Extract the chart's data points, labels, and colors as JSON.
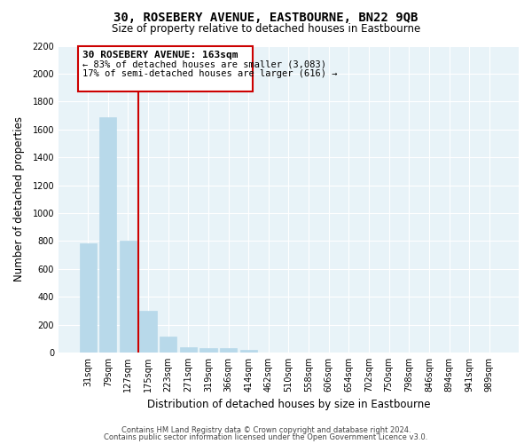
{
  "title": "30, ROSEBERY AVENUE, EASTBOURNE, BN22 9QB",
  "subtitle": "Size of property relative to detached houses in Eastbourne",
  "xlabel": "Distribution of detached houses by size in Eastbourne",
  "ylabel": "Number of detached properties",
  "categories": [
    "31sqm",
    "79sqm",
    "127sqm",
    "175sqm",
    "223sqm",
    "271sqm",
    "319sqm",
    "366sqm",
    "414sqm",
    "462sqm",
    "510sqm",
    "558sqm",
    "606sqm",
    "654sqm",
    "702sqm",
    "750sqm",
    "798sqm",
    "846sqm",
    "894sqm",
    "941sqm",
    "989sqm"
  ],
  "values": [
    780,
    1690,
    800,
    300,
    115,
    40,
    30,
    30,
    20,
    0,
    0,
    0,
    0,
    0,
    0,
    0,
    0,
    0,
    0,
    0,
    0
  ],
  "bar_color": "#b8d9ea",
  "vline_color": "#cc0000",
  "vline_pos": 2.5,
  "annotation_title": "30 ROSEBERY AVENUE: 163sqm",
  "annotation_line1": "← 83% of detached houses are smaller (3,083)",
  "annotation_line2": "17% of semi-detached houses are larger (616) →",
  "ylim": [
    0,
    2200
  ],
  "yticks": [
    0,
    200,
    400,
    600,
    800,
    1000,
    1200,
    1400,
    1600,
    1800,
    2000,
    2200
  ],
  "footer1": "Contains HM Land Registry data © Crown copyright and database right 2024.",
  "footer2": "Contains public sector information licensed under the Open Government Licence v3.0.",
  "bg_color": "#e8f3f8",
  "title_fontsize": 10,
  "subtitle_fontsize": 8.5,
  "tick_fontsize": 7,
  "label_fontsize": 8.5,
  "annotation_title_fontsize": 8,
  "annotation_line_fontsize": 7.5,
  "footer_fontsize": 6
}
